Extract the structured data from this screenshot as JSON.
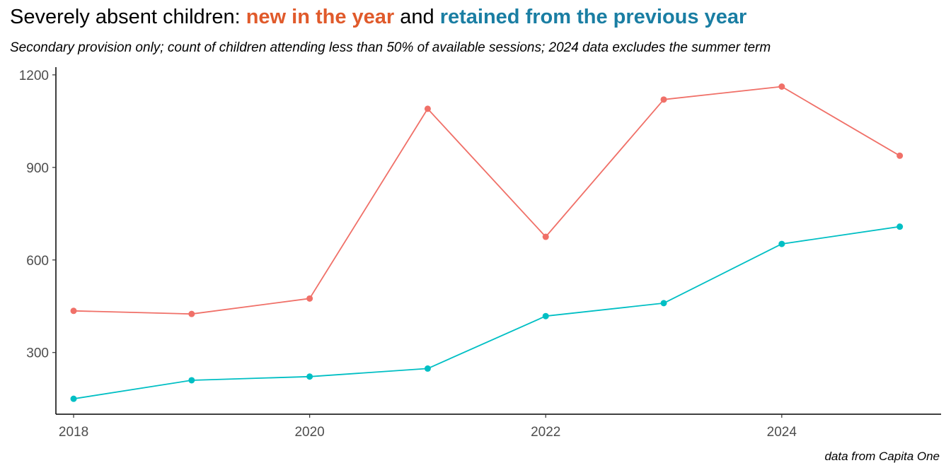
{
  "title": {
    "prefix": "Severely absent children: ",
    "new_label": "new in the year",
    "middle": " and ",
    "retained_label": "retained from the previous year",
    "new_color": "#E05A2B",
    "retained_color": "#1A7EA3"
  },
  "subtitle": "Secondary provision only; count of children attending less than 50% of available sessions; 2024 data excludes the summer term",
  "caption": "data from Capita One",
  "chart_data": {
    "type": "line",
    "x": [
      2018,
      2019,
      2020,
      2021,
      2022,
      2023,
      2024,
      2025
    ],
    "series": [
      {
        "values": [
          435,
          425,
          475,
          1090,
          675,
          1120,
          1162,
          938
        ],
        "color": "#F07068"
      },
      {
        "values": [
          150,
          210,
          222,
          248,
          418,
          460,
          652,
          708
        ],
        "color": "#00BFC4"
      }
    ],
    "xticks": [
      2018,
      2020,
      2022,
      2024
    ],
    "yticks": [
      300,
      600,
      900,
      1200
    ],
    "xlim": [
      2017.85,
      2025.35
    ],
    "ylim": [
      100,
      1225
    ],
    "grid": false,
    "legend": "none"
  }
}
